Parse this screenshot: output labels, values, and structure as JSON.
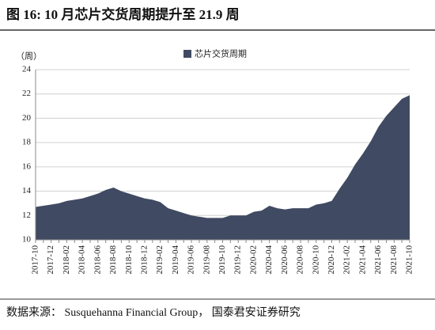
{
  "title": "图 16:  10 月芯片交货周期提升至 21.9 周",
  "source": "数据来源：  Susquehanna Financial Group，  国泰君安证券研究",
  "chart_data": {
    "type": "area",
    "y_axis_label": "（周）",
    "categories": [
      "2017-10",
      null,
      "2017-12",
      null,
      "2018-02",
      null,
      "2018-04",
      null,
      "2018-06",
      null,
      "2018-08",
      null,
      "2018-10",
      null,
      "2018-12",
      null,
      "2019-02",
      null,
      "2019-04",
      null,
      "2019-06",
      null,
      "2019-08",
      null,
      "2019-10",
      null,
      "2019-12",
      null,
      "2020-02",
      null,
      "2020-04",
      null,
      "2020-06",
      null,
      "2020-08",
      null,
      "2020-10",
      null,
      "2020-12",
      null,
      "2021-02",
      null,
      "2021-04",
      null,
      "2021-06",
      null,
      "2021-08",
      null,
      "2021-10"
    ],
    "series": [
      {
        "name": "芯片交货周期",
        "color": "#404a62",
        "values": [
          12.7,
          12.8,
          12.9,
          13.0,
          13.2,
          13.3,
          13.4,
          13.6,
          13.8,
          14.1,
          14.3,
          14.0,
          13.8,
          13.6,
          13.4,
          13.3,
          13.1,
          12.6,
          12.4,
          12.2,
          12.0,
          11.9,
          11.8,
          11.8,
          11.8,
          12.0,
          12.0,
          12.0,
          12.3,
          12.4,
          12.8,
          12.6,
          12.5,
          12.6,
          12.6,
          12.6,
          12.9,
          13.0,
          13.2,
          14.2,
          15.1,
          16.2,
          17.1,
          18.1,
          19.3,
          20.2,
          20.9,
          21.6,
          21.9
        ]
      }
    ],
    "ylim": [
      10,
      24
    ],
    "yticks": [
      10,
      12,
      14,
      16,
      18,
      20,
      22,
      24
    ],
    "grid": true,
    "legend": "top"
  }
}
